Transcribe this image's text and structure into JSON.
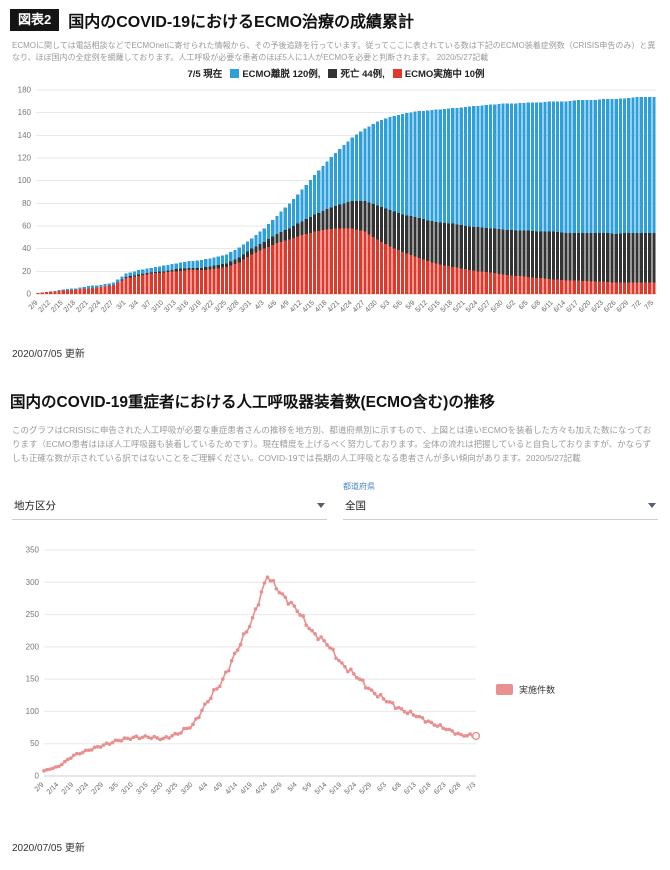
{
  "page": {
    "fig_label": "図表2",
    "title1": "国内のCOVID-19におけるECMO治療の成績累計",
    "desc1": "ECMOに関しては電話相談などでECMOnetに寄せられた情報から、その予後追跡を行っています。従ってここに表されている数は下記のECMO装着症例数（CRISIS申告のみ）と異なり、ほぼ国内の全症例を網羅しております。人工呼吸が必要な患者のほぼ5人に1人がECMOを必要と判断されます。 2020/5/27記載",
    "updated1": "2020/07/05 更新",
    "title2": "国内のCOVID-19重症者における人工呼吸器装着数(ECMO含む)の推移",
    "desc2": "このグラフはCRISISに申告された人工呼吸が必要な重症患者さんの推移を地方別、都道府県別に示すもので、上図とは違いECMOを装着した方々も加えた数になっております（ECMO患者はほぼ人工呼吸器も装着しているためです）。現在精度を上げるべく努力しております。全体の流れは把握していると自負しておりますが、かならずしも正確な数が示されている訳ではないことをご理解ください。COVID-19では長期の人工呼吸となる患者さんが多い傾向があります。2020/5/27記載",
    "updated2": "2020/07/05 更新"
  },
  "legend1": {
    "prefix": "7/5 現在",
    "items": [
      {
        "label": "ECMO離脱 120例,",
        "color": "#2da0dc"
      },
      {
        "label": "死亡 44例,",
        "color": "#333333"
      },
      {
        "label": "ECMO実施中 10例",
        "color": "#e0392c"
      }
    ]
  },
  "filters": {
    "region_label": "地方区分",
    "pref_label": "都道府県",
    "pref_value": "全国"
  },
  "chart_data": [
    {
      "type": "bar",
      "stacked": true,
      "title": "国内のCOVID-19におけるECMO治療の成績累計",
      "xlabel": "",
      "ylabel": "",
      "ylim": [
        0,
        180
      ],
      "y_tick_step": 20,
      "grid": true,
      "categories": [
        "2/9",
        "2/12",
        "2/15",
        "2/18",
        "2/21",
        "2/24",
        "2/27",
        "3/1",
        "3/4",
        "3/7",
        "3/10",
        "3/13",
        "3/16",
        "3/19",
        "3/22",
        "3/25",
        "3/28",
        "3/31",
        "4/3",
        "4/6",
        "4/9",
        "4/12",
        "4/15",
        "4/18",
        "4/21",
        "4/24",
        "4/27",
        "4/30",
        "5/3",
        "5/6",
        "5/9",
        "5/12",
        "5/15",
        "5/18",
        "5/21",
        "5/24",
        "5/27",
        "5/30",
        "6/2",
        "6/5",
        "6/8",
        "6/11",
        "6/14",
        "6/17",
        "6/20",
        "6/23",
        "6/26",
        "6/29",
        "7/2",
        "7/5"
      ],
      "series": [
        {
          "name": "ECMO実施中",
          "color": "#e0392c",
          "values": [
            1,
            2,
            3,
            4,
            5,
            6,
            8,
            14,
            16,
            18,
            19,
            20,
            21,
            21,
            22,
            24,
            28,
            35,
            40,
            45,
            48,
            52,
            55,
            57,
            58,
            58,
            55,
            48,
            42,
            37,
            33,
            29,
            26,
            24,
            22,
            20,
            19,
            17,
            16,
            15,
            14,
            13,
            12,
            12,
            11,
            11,
            10,
            10,
            10,
            10
          ]
        },
        {
          "name": "死亡",
          "color": "#333333",
          "values": [
            0,
            0,
            0,
            0,
            0,
            0,
            0,
            1,
            1,
            1,
            1,
            2,
            2,
            2,
            3,
            3,
            4,
            5,
            6,
            8,
            10,
            12,
            15,
            18,
            21,
            24,
            27,
            30,
            32,
            33,
            35,
            36,
            37,
            38,
            38,
            39,
            39,
            40,
            40,
            41,
            41,
            42,
            42,
            42,
            43,
            43,
            43,
            44,
            44,
            44
          ]
        },
        {
          "name": "ECMO離脱",
          "color": "#2da0dc",
          "values": [
            0,
            0,
            1,
            1,
            2,
            2,
            2,
            3,
            4,
            4,
            5,
            5,
            6,
            7,
            7,
            8,
            9,
            9,
            12,
            16,
            22,
            28,
            35,
            42,
            49,
            56,
            64,
            74,
            82,
            89,
            93,
            97,
            100,
            102,
            105,
            107,
            109,
            111,
            112,
            113,
            114,
            115,
            116,
            117,
            117,
            118,
            119,
            119,
            120,
            120
          ]
        }
      ]
    },
    {
      "type": "line",
      "title": "国内のCOVID-19重症者における人工呼吸器装着数(ECMO含む)の推移",
      "xlabel": "",
      "ylabel": "",
      "ylim": [
        0,
        350
      ],
      "y_tick_step": 50,
      "grid": true,
      "legend_position": "right",
      "categories": [
        "2/9",
        "2/14",
        "2/19",
        "2/24",
        "2/29",
        "3/5",
        "3/10",
        "3/15",
        "3/20",
        "3/25",
        "3/30",
        "4/4",
        "4/9",
        "4/14",
        "4/19",
        "4/24",
        "4/29",
        "5/4",
        "5/9",
        "5/14",
        "5/19",
        "5/24",
        "5/29",
        "6/3",
        "6/8",
        "6/13",
        "6/18",
        "6/23",
        "6/28",
        "7/3"
      ],
      "series": [
        {
          "name": "実施件数",
          "color": "#e88f8f",
          "values": [
            8,
            15,
            32,
            40,
            48,
            55,
            60,
            60,
            58,
            65,
            80,
            115,
            150,
            195,
            245,
            308,
            282,
            255,
            225,
            203,
            175,
            152,
            133,
            115,
            104,
            92,
            83,
            72,
            64,
            62
          ]
        }
      ]
    }
  ]
}
